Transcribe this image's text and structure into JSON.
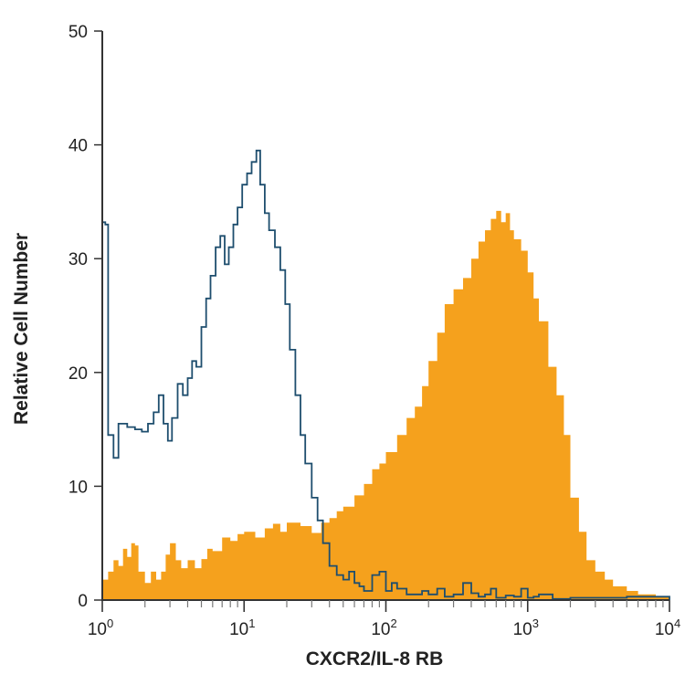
{
  "chart_data": {
    "type": "area",
    "title": "",
    "xlabel": "CXCR2/IL-8 RB",
    "ylabel": "Relative Cell Number",
    "xscale": "log",
    "xlim": [
      1,
      10000
    ],
    "ylim": [
      0,
      50
    ],
    "grid": false,
    "y_ticks": [
      0,
      10,
      20,
      30,
      40,
      50
    ],
    "x_ticks": [
      {
        "base": "10",
        "exp": "0",
        "value": 1
      },
      {
        "base": "10",
        "exp": "1",
        "value": 10
      },
      {
        "base": "10",
        "exp": "2",
        "value": 100
      },
      {
        "base": "10",
        "exp": "3",
        "value": 1000
      },
      {
        "base": "10",
        "exp": "4",
        "value": 10000
      }
    ],
    "series": [
      {
        "style": "filled",
        "color": "#F5A11D",
        "x": [
          1,
          1.1,
          1.2,
          1.3,
          1.4,
          1.5,
          1.6,
          1.7,
          1.8,
          2,
          2.2,
          2.4,
          2.6,
          2.8,
          3,
          3.3,
          3.6,
          4,
          4.5,
          5,
          5.5,
          6,
          7,
          8,
          9,
          10,
          12,
          14,
          16,
          18,
          20,
          25,
          30,
          35,
          40,
          45,
          50,
          60,
          70,
          80,
          90,
          100,
          120,
          140,
          160,
          180,
          200,
          230,
          260,
          300,
          350,
          400,
          450,
          500,
          550,
          600,
          650,
          700,
          750,
          800,
          900,
          1000,
          1100,
          1200,
          1400,
          1600,
          1800,
          2000,
          2300,
          2600,
          3000,
          3500,
          4000,
          5000,
          6000,
          8000,
          10000
        ],
        "y": [
          1.8,
          2.5,
          3.5,
          3,
          4.5,
          3.8,
          5,
          4.8,
          2.5,
          1.5,
          2.5,
          1.8,
          2.5,
          4,
          5,
          3.5,
          2.8,
          3.5,
          2.8,
          3.6,
          4.5,
          4.3,
          5.5,
          5.2,
          5.8,
          6,
          5.5,
          6.3,
          6.7,
          6,
          6.8,
          6.5,
          5.9,
          6.8,
          7.2,
          7.8,
          8.2,
          9.2,
          10.2,
          11.5,
          12,
          13,
          14.5,
          16,
          17,
          18.8,
          21,
          23.5,
          26,
          27.3,
          28.3,
          30,
          31.5,
          32.5,
          33.5,
          34.2,
          33.2,
          34,
          32.5,
          31.7,
          30.7,
          28.8,
          26.5,
          24.5,
          20.5,
          18,
          14.5,
          9,
          6,
          3.5,
          2.5,
          1.8,
          1.2,
          0.8,
          0.5,
          0.3,
          0
        ]
      },
      {
        "style": "outline",
        "color": "#1E4E6E",
        "x": [
          1,
          1.05,
          1.1,
          1.2,
          1.3,
          1.5,
          1.7,
          1.9,
          2.1,
          2.3,
          2.5,
          2.7,
          2.9,
          3.1,
          3.4,
          3.7,
          4,
          4.3,
          4.6,
          5,
          5.4,
          5.8,
          6.3,
          6.8,
          7.3,
          7.8,
          8.4,
          9,
          9.7,
          10.5,
          11.3,
          12.2,
          13,
          14,
          15,
          16.5,
          18,
          19.5,
          21,
          23,
          25,
          27,
          30,
          33,
          36,
          40,
          45,
          50,
          55,
          60,
          65,
          70,
          80,
          90,
          100,
          110,
          120,
          140,
          160,
          180,
          200,
          230,
          260,
          300,
          350,
          400,
          450,
          500,
          550,
          600,
          700,
          800,
          900,
          1000,
          1100,
          1200,
          1500,
          2000,
          3000,
          5000,
          10000
        ],
        "y": [
          33.2,
          33,
          14.5,
          12.5,
          15.5,
          15.2,
          15,
          14.8,
          15.5,
          16.5,
          18,
          15.5,
          14,
          16,
          19,
          18,
          19.5,
          21,
          20.5,
          24,
          26.5,
          28.5,
          31,
          32,
          29.5,
          31,
          33,
          34.5,
          36.5,
          37.5,
          38.5,
          39.5,
          36.5,
          34,
          32.5,
          31,
          29,
          26,
          22,
          18,
          14.5,
          12,
          9,
          7,
          5,
          3,
          2.2,
          1.8,
          2.5,
          1.5,
          1.2,
          0.8,
          2.2,
          2.5,
          0.8,
          1.5,
          1,
          0.5,
          0.5,
          0.8,
          0.5,
          1,
          0.3,
          0.5,
          1.5,
          0.6,
          0.3,
          0.5,
          1,
          0.2,
          0.4,
          0.3,
          1,
          0.2,
          0.3,
          0.5,
          0.1,
          0.2,
          0.2,
          0.3,
          0
        ]
      }
    ]
  }
}
